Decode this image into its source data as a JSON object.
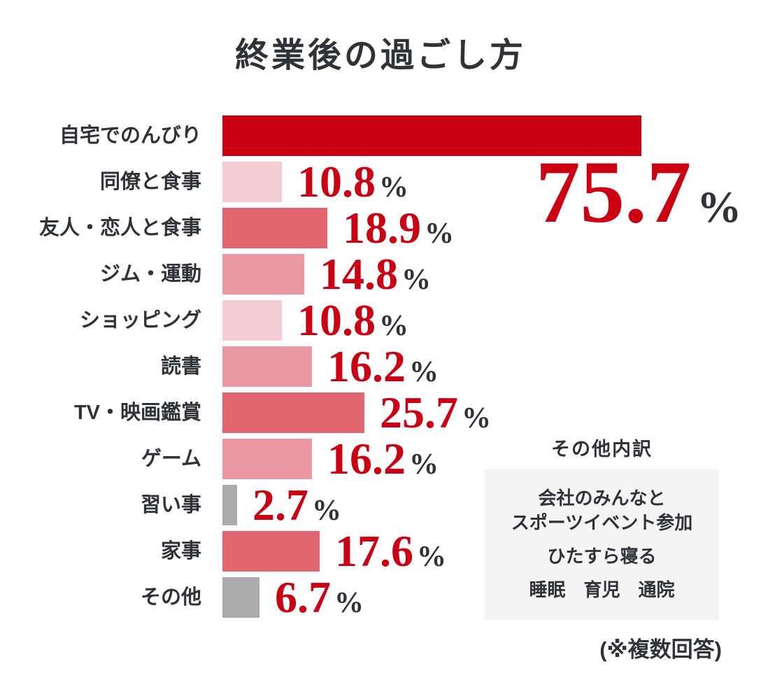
{
  "title": "終業後の過ごし方",
  "footnote": "(※複数回答)",
  "colors": {
    "red": "#cb0013",
    "rose": "#e26570",
    "pink": "#ec98a2",
    "light_pink": "#f5ccd3",
    "gray": "#ababab",
    "text": "#2f3237",
    "box_bg": "#f4f4f4"
  },
  "chart_data": {
    "type": "bar",
    "orientation": "horizontal",
    "title": "終業後の過ごし方",
    "unit": "%",
    "x_max": 75.7,
    "grid": false,
    "legend": "none",
    "categories": [
      "自宅でのんびり",
      "同僚と食事",
      "友人・恋人と食事",
      "ジム・運動",
      "ショッピング",
      "読書",
      "TV・映画鑑賞",
      "ゲーム",
      "習い事",
      "家事",
      "その他"
    ],
    "values": [
      75.7,
      10.8,
      18.9,
      14.8,
      10.8,
      16.2,
      25.7,
      16.2,
      2.7,
      17.6,
      6.7
    ],
    "items": [
      {
        "label": "自宅でのんびり",
        "value": 75.7,
        "display": "75.7",
        "color": "red",
        "value_placement": "large-below"
      },
      {
        "label": "同僚と食事",
        "value": 10.8,
        "display": "10.8",
        "color": "light_pink",
        "value_placement": "inline"
      },
      {
        "label": "友人・恋人と食事",
        "value": 18.9,
        "display": "18.9",
        "color": "rose",
        "value_placement": "inline"
      },
      {
        "label": "ジム・運動",
        "value": 14.8,
        "display": "14.8",
        "color": "pink",
        "value_placement": "inline"
      },
      {
        "label": "ショッピング",
        "value": 10.8,
        "display": "10.8",
        "color": "light_pink",
        "value_placement": "inline"
      },
      {
        "label": "読書",
        "value": 16.2,
        "display": "16.2",
        "color": "pink",
        "value_placement": "inline"
      },
      {
        "label": "TV・映画鑑賞",
        "value": 25.7,
        "display": "25.7",
        "color": "rose",
        "value_placement": "inline"
      },
      {
        "label": "ゲーム",
        "value": 16.2,
        "display": "16.2",
        "color": "pink",
        "value_placement": "inline"
      },
      {
        "label": "習い事",
        "value": 2.7,
        "display": "2.7",
        "color": "gray",
        "value_placement": "inline"
      },
      {
        "label": "家事",
        "value": 17.6,
        "display": "17.6",
        "color": "rose",
        "value_placement": "inline"
      },
      {
        "label": "その他",
        "value": 6.7,
        "display": "6.7",
        "color": "gray",
        "value_placement": "inline"
      }
    ]
  },
  "big_value": {
    "number": "75.7",
    "unit": "%"
  },
  "other_breakdown": {
    "heading": "その他内訳",
    "groups": [
      {
        "lines": [
          "会社のみんなと",
          "スポーツイベント参加"
        ]
      },
      {
        "lines": [
          "ひたすら寝る"
        ]
      },
      {
        "lines": [
          "睡眠　育児　通院"
        ]
      }
    ]
  }
}
